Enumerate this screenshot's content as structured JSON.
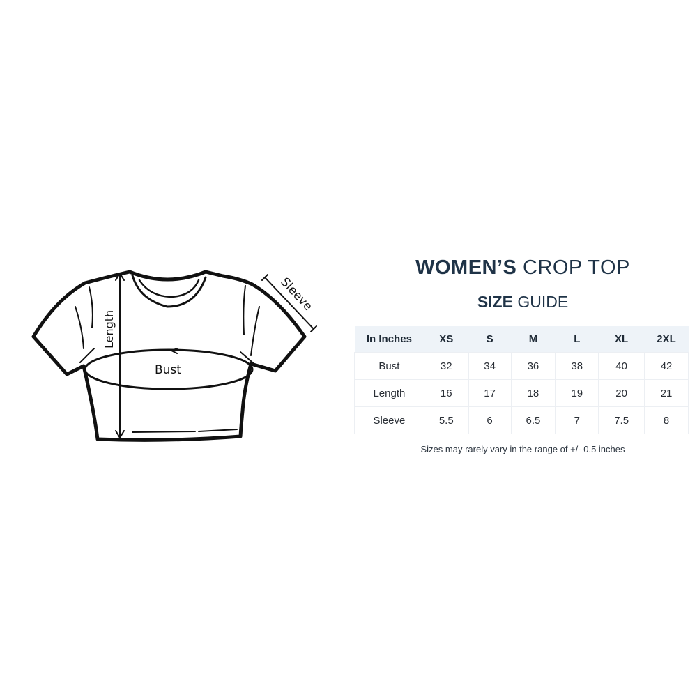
{
  "title": {
    "bold": "WOMEN’S",
    "light": " CROP TOP"
  },
  "subtitle": {
    "bold": "SIZE",
    "light": " GUIDE"
  },
  "diagram": {
    "length_label": "Length",
    "bust_label": "Bust",
    "sleeve_label": "Sleeve"
  },
  "table": {
    "headers": [
      "In Inches",
      "XS",
      "S",
      "M",
      "L",
      "XL",
      "2XL"
    ],
    "rows": [
      [
        "Bust",
        "32",
        "34",
        "36",
        "38",
        "40",
        "42"
      ],
      [
        "Length",
        "16",
        "17",
        "18",
        "19",
        "20",
        "21"
      ],
      [
        "Sleeve",
        "5.5",
        "6",
        "6.5",
        "7",
        "7.5",
        "8"
      ]
    ]
  },
  "note": "Sizes may rarely vary in the range of +/- 0.5 inches",
  "colors": {
    "heading": "#1f3347",
    "header_bg": "#eef3f8"
  }
}
